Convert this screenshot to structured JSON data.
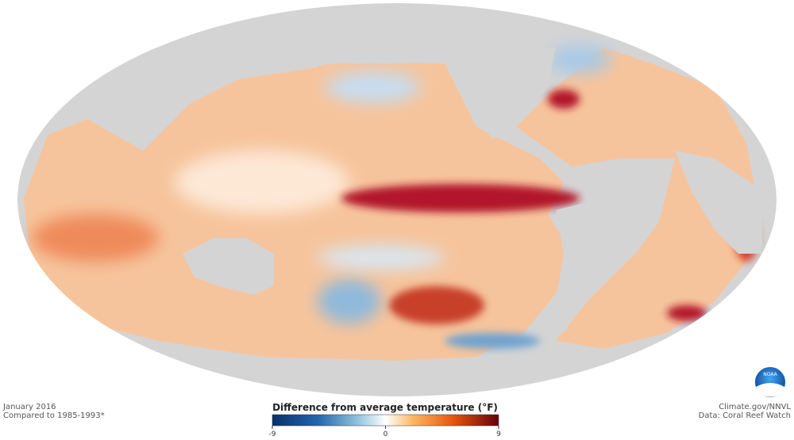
{
  "map": {
    "date": "January 2016",
    "baseline": "Compared to 1985-1993*"
  },
  "credits": {
    "source": "Climate.gov/NNVL",
    "data": "Data: Coral Reef Watch"
  },
  "legend": {
    "title": "Difference from average temperature (°F)",
    "range": [
      -9,
      9
    ],
    "ticks": [
      -9,
      0,
      9
    ]
  },
  "logo": {
    "text": "NOAA"
  }
}
